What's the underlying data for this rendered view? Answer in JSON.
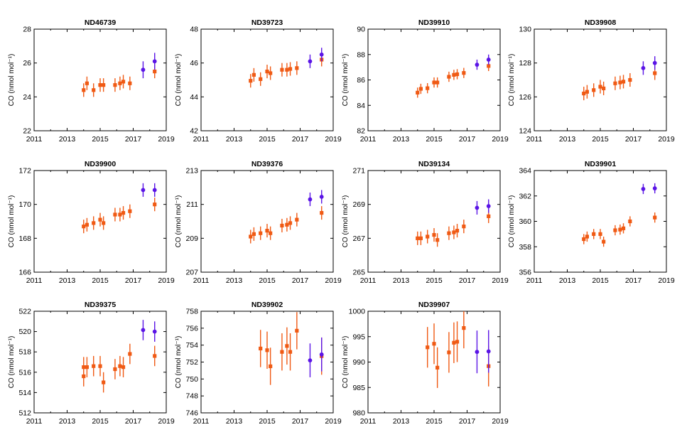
{
  "figure": {
    "ylabel": "CO (nmol mol⁻¹)",
    "xticks": [
      "2011",
      "2013",
      "2015",
      "2017",
      "2019"
    ],
    "colors": {
      "orange": "#f05a14",
      "blue": "#5a14e6",
      "axis": "#000000"
    }
  },
  "chart_data": [
    {
      "type": "scatter",
      "title": "ND46739",
      "xlim": [
        2011,
        2019
      ],
      "ylim": [
        22,
        28
      ],
      "yticks": [
        "22",
        "24",
        "26",
        "28"
      ],
      "ytick_values": [
        22,
        24,
        26,
        28
      ],
      "series": [
        {
          "name": "orange",
          "marker": "square",
          "points": [
            [
              2014.0,
              24.4,
              0.4
            ],
            [
              2014.2,
              24.8,
              0.4
            ],
            [
              2014.6,
              24.4,
              0.4
            ],
            [
              2015.0,
              24.7,
              0.4
            ],
            [
              2015.2,
              24.7,
              0.4
            ],
            [
              2015.9,
              24.7,
              0.4
            ],
            [
              2016.2,
              24.8,
              0.4
            ],
            [
              2016.4,
              24.9,
              0.4
            ],
            [
              2016.8,
              24.8,
              0.4
            ],
            [
              2018.3,
              25.5,
              0.4
            ]
          ]
        },
        {
          "name": "blue",
          "marker": "circle",
          "points": [
            [
              2017.6,
              25.6,
              0.5
            ],
            [
              2018.3,
              26.1,
              0.5
            ]
          ]
        }
      ]
    },
    {
      "type": "scatter",
      "title": "ND39723",
      "xlim": [
        2011,
        2019
      ],
      "ylim": [
        42,
        48
      ],
      "yticks": [
        "42",
        "44",
        "46",
        "48"
      ],
      "ytick_values": [
        42,
        44,
        46,
        48
      ],
      "series": [
        {
          "name": "orange",
          "marker": "square",
          "points": [
            [
              2014.0,
              44.95,
              0.4
            ],
            [
              2014.2,
              45.3,
              0.4
            ],
            [
              2014.6,
              45.05,
              0.4
            ],
            [
              2015.0,
              45.5,
              0.4
            ],
            [
              2015.2,
              45.4,
              0.4
            ],
            [
              2015.9,
              45.6,
              0.4
            ],
            [
              2016.2,
              45.6,
              0.4
            ],
            [
              2016.4,
              45.65,
              0.4
            ],
            [
              2016.8,
              45.7,
              0.4
            ],
            [
              2018.3,
              46.2,
              0.4
            ]
          ]
        },
        {
          "name": "blue",
          "marker": "circle",
          "points": [
            [
              2017.6,
              46.1,
              0.4
            ],
            [
              2018.3,
              46.5,
              0.4
            ]
          ]
        }
      ]
    },
    {
      "type": "scatter",
      "title": "ND39910",
      "xlim": [
        2011,
        2019
      ],
      "ylim": [
        82,
        90
      ],
      "yticks": [
        "82",
        "84",
        "86",
        "88",
        "90"
      ],
      "ytick_values": [
        82,
        84,
        86,
        88,
        90
      ],
      "series": [
        {
          "name": "orange",
          "marker": "square",
          "points": [
            [
              2014.0,
              85.0,
              0.4
            ],
            [
              2014.2,
              85.3,
              0.4
            ],
            [
              2014.6,
              85.35,
              0.4
            ],
            [
              2015.0,
              85.8,
              0.4
            ],
            [
              2015.2,
              85.8,
              0.4
            ],
            [
              2015.9,
              86.25,
              0.4
            ],
            [
              2016.2,
              86.4,
              0.4
            ],
            [
              2016.4,
              86.45,
              0.4
            ],
            [
              2016.8,
              86.55,
              0.4
            ],
            [
              2018.3,
              87.1,
              0.4
            ]
          ]
        },
        {
          "name": "blue",
          "marker": "circle",
          "points": [
            [
              2017.6,
              87.2,
              0.4
            ],
            [
              2018.3,
              87.6,
              0.4
            ]
          ]
        }
      ]
    },
    {
      "type": "scatter",
      "title": "ND39908",
      "xlim": [
        2011,
        2019
      ],
      "ylim": [
        124,
        130
      ],
      "yticks": [
        "124",
        "126",
        "128",
        "130"
      ],
      "ytick_values": [
        124,
        126,
        128,
        130
      ],
      "series": [
        {
          "name": "orange",
          "marker": "square",
          "points": [
            [
              2014.0,
              126.2,
              0.4
            ],
            [
              2014.2,
              126.3,
              0.4
            ],
            [
              2014.6,
              126.4,
              0.4
            ],
            [
              2015.0,
              126.6,
              0.4
            ],
            [
              2015.2,
              126.5,
              0.4
            ],
            [
              2015.9,
              126.8,
              0.4
            ],
            [
              2016.2,
              126.85,
              0.4
            ],
            [
              2016.4,
              126.9,
              0.4
            ],
            [
              2016.8,
              127.0,
              0.4
            ],
            [
              2018.3,
              127.4,
              0.4
            ]
          ]
        },
        {
          "name": "blue",
          "marker": "circle",
          "points": [
            [
              2017.6,
              127.7,
              0.4
            ],
            [
              2018.3,
              128.0,
              0.4
            ]
          ]
        }
      ]
    },
    {
      "type": "scatter",
      "title": "ND39900",
      "xlim": [
        2011,
        2019
      ],
      "ylim": [
        166,
        172
      ],
      "yticks": [
        "166",
        "168",
        "170",
        "172"
      ],
      "ytick_values": [
        166,
        168,
        170,
        172
      ],
      "series": [
        {
          "name": "orange",
          "marker": "square",
          "points": [
            [
              2014.0,
              168.7,
              0.4
            ],
            [
              2014.2,
              168.8,
              0.4
            ],
            [
              2014.6,
              168.9,
              0.4
            ],
            [
              2015.0,
              169.1,
              0.4
            ],
            [
              2015.2,
              168.9,
              0.4
            ],
            [
              2015.9,
              169.4,
              0.4
            ],
            [
              2016.2,
              169.4,
              0.4
            ],
            [
              2016.4,
              169.5,
              0.4
            ],
            [
              2016.8,
              169.6,
              0.4
            ],
            [
              2018.3,
              170.0,
              0.4
            ]
          ]
        },
        {
          "name": "blue",
          "marker": "circle",
          "points": [
            [
              2017.6,
              170.85,
              0.4
            ],
            [
              2018.3,
              170.85,
              0.4
            ]
          ]
        }
      ]
    },
    {
      "type": "scatter",
      "title": "ND39376",
      "xlim": [
        2011,
        2019
      ],
      "ylim": [
        207,
        213
      ],
      "yticks": [
        "207",
        "209",
        "211",
        "213"
      ],
      "ytick_values": [
        207,
        209,
        211,
        213
      ],
      "series": [
        {
          "name": "orange",
          "marker": "square",
          "points": [
            [
              2014.0,
              209.1,
              0.4
            ],
            [
              2014.2,
              209.25,
              0.4
            ],
            [
              2014.6,
              209.3,
              0.4
            ],
            [
              2015.0,
              209.45,
              0.4
            ],
            [
              2015.2,
              209.3,
              0.4
            ],
            [
              2015.9,
              209.75,
              0.4
            ],
            [
              2016.2,
              209.8,
              0.4
            ],
            [
              2016.4,
              209.9,
              0.4
            ],
            [
              2016.8,
              210.1,
              0.4
            ],
            [
              2018.3,
              210.5,
              0.4
            ]
          ]
        },
        {
          "name": "blue",
          "marker": "circle",
          "points": [
            [
              2017.6,
              211.3,
              0.4
            ],
            [
              2018.3,
              211.45,
              0.4
            ]
          ]
        }
      ]
    },
    {
      "type": "scatter",
      "title": "ND39134",
      "xlim": [
        2011,
        2019
      ],
      "ylim": [
        265,
        271
      ],
      "yticks": [
        "265",
        "267",
        "269",
        "271"
      ],
      "ytick_values": [
        265,
        267,
        269,
        271
      ],
      "series": [
        {
          "name": "orange",
          "marker": "square",
          "points": [
            [
              2014.0,
              267.0,
              0.4
            ],
            [
              2014.2,
              267.0,
              0.4
            ],
            [
              2014.6,
              267.1,
              0.4
            ],
            [
              2015.0,
              267.2,
              0.4
            ],
            [
              2015.2,
              266.9,
              0.4
            ],
            [
              2015.9,
              267.3,
              0.4
            ],
            [
              2016.2,
              267.35,
              0.4
            ],
            [
              2016.4,
              267.45,
              0.4
            ],
            [
              2016.8,
              267.7,
              0.4
            ],
            [
              2018.3,
              268.3,
              0.4
            ]
          ]
        },
        {
          "name": "blue",
          "marker": "circle",
          "points": [
            [
              2017.6,
              268.8,
              0.4
            ],
            [
              2018.3,
              268.9,
              0.4
            ]
          ]
        }
      ]
    },
    {
      "type": "scatter",
      "title": "ND39901",
      "xlim": [
        2011,
        2019
      ],
      "ylim": [
        356,
        364
      ],
      "yticks": [
        "356",
        "358",
        "360",
        "362",
        "364"
      ],
      "ytick_values": [
        356,
        358,
        360,
        362,
        364
      ],
      "series": [
        {
          "name": "orange",
          "marker": "square",
          "points": [
            [
              2014.0,
              358.6,
              0.4
            ],
            [
              2014.2,
              358.8,
              0.4
            ],
            [
              2014.6,
              359.0,
              0.4
            ],
            [
              2015.0,
              359.0,
              0.4
            ],
            [
              2015.2,
              358.4,
              0.4
            ],
            [
              2015.9,
              359.3,
              0.4
            ],
            [
              2016.2,
              359.35,
              0.4
            ],
            [
              2016.4,
              359.45,
              0.4
            ],
            [
              2016.8,
              360.0,
              0.4
            ],
            [
              2018.3,
              360.3,
              0.4
            ]
          ]
        },
        {
          "name": "blue",
          "marker": "circle",
          "points": [
            [
              2017.6,
              362.55,
              0.4
            ],
            [
              2018.3,
              362.6,
              0.4
            ]
          ]
        }
      ]
    },
    {
      "type": "scatter",
      "title": "ND39375",
      "xlim": [
        2011,
        2019
      ],
      "ylim": [
        512,
        522
      ],
      "yticks": [
        "512",
        "514",
        "516",
        "518",
        "520",
        "522"
      ],
      "ytick_values": [
        512,
        514,
        516,
        518,
        520,
        522
      ],
      "series": [
        {
          "name": "orange",
          "marker": "square",
          "points": [
            [
              2014.0,
              515.6,
              1.0
            ],
            [
              2014.0,
              516.5,
              1.0
            ],
            [
              2014.2,
              516.5,
              1.0
            ],
            [
              2014.6,
              516.6,
              1.0
            ],
            [
              2015.0,
              516.6,
              1.0
            ],
            [
              2015.2,
              515.0,
              1.0
            ],
            [
              2015.9,
              516.3,
              1.0
            ],
            [
              2016.2,
              516.6,
              1.0
            ],
            [
              2016.4,
              516.5,
              1.0
            ],
            [
              2016.8,
              517.8,
              1.0
            ],
            [
              2018.3,
              517.6,
              1.0
            ]
          ]
        },
        {
          "name": "blue",
          "marker": "circle",
          "points": [
            [
              2017.6,
              520.15,
              1.0
            ],
            [
              2018.3,
              520.0,
              1.0
            ]
          ]
        }
      ]
    },
    {
      "type": "scatter",
      "title": "ND39902",
      "xlim": [
        2011,
        2019
      ],
      "ylim": [
        746,
        758
      ],
      "yticks": [
        "746",
        "748",
        "750",
        "752",
        "754",
        "756",
        "758"
      ],
      "ytick_values": [
        746,
        748,
        750,
        752,
        754,
        756,
        758
      ],
      "series": [
        {
          "name": "orange",
          "marker": "square",
          "points": [
            [
              2014.6,
              753.6,
              2.2
            ],
            [
              2015.0,
              753.4,
              2.2
            ],
            [
              2015.2,
              751.5,
              2.2
            ],
            [
              2015.9,
              753.2,
              2.2
            ],
            [
              2016.2,
              753.9,
              2.2
            ],
            [
              2016.4,
              753.2,
              2.2
            ],
            [
              2016.8,
              755.7,
              2.2
            ],
            [
              2018.3,
              752.7,
              2.2
            ]
          ]
        },
        {
          "name": "blue",
          "marker": "circle",
          "points": [
            [
              2017.6,
              752.2,
              2.0
            ],
            [
              2018.3,
              752.9,
              2.0
            ]
          ]
        }
      ]
    },
    {
      "type": "scatter",
      "title": "ND39907",
      "xlim": [
        2011,
        2019
      ],
      "ylim": [
        980,
        1000
      ],
      "yticks": [
        "980",
        "985",
        "990",
        "995",
        "1000"
      ],
      "ytick_values": [
        980,
        985,
        990,
        995,
        1000
      ],
      "series": [
        {
          "name": "orange",
          "marker": "square",
          "points": [
            [
              2014.6,
              992.9,
              4.0
            ],
            [
              2015.0,
              993.6,
              4.0
            ],
            [
              2015.2,
              988.9,
              4.0
            ],
            [
              2015.9,
              991.9,
              4.0
            ],
            [
              2016.2,
              993.8,
              4.0
            ],
            [
              2016.4,
              994.0,
              4.0
            ],
            [
              2016.8,
              996.7,
              4.0
            ],
            [
              2018.3,
              989.2,
              4.0
            ]
          ]
        },
        {
          "name": "blue",
          "marker": "circle",
          "points": [
            [
              2017.6,
              992.0,
              4.2
            ],
            [
              2018.3,
              992.1,
              4.2
            ]
          ]
        }
      ]
    }
  ]
}
